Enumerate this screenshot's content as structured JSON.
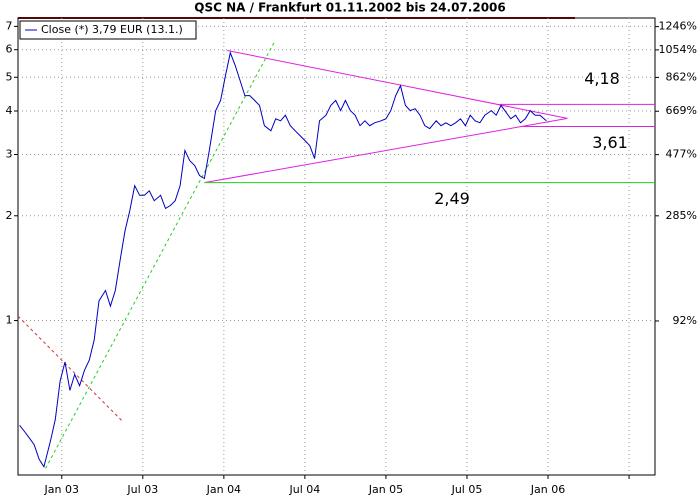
{
  "chart_data": {
    "type": "line",
    "title": "QSC NA / Frankfurt 01.11.2002 bis 24.07.2006",
    "log_y": true,
    "grid": true,
    "legend": "top-left",
    "x": [
      2002.74,
      2002.77,
      2002.8,
      2002.83,
      2002.86,
      2002.89,
      2002.93,
      2002.96,
      2002.99,
      2003.02,
      2003.05,
      2003.08,
      2003.11,
      2003.14,
      2003.17,
      2003.2,
      2003.23,
      2003.27,
      2003.3,
      2003.33,
      2003.36,
      2003.39,
      2003.42,
      2003.45,
      2003.48,
      2003.51,
      2003.54,
      2003.57,
      2003.61,
      2003.64,
      2003.67,
      2003.7,
      2003.73,
      2003.76,
      2003.79,
      2003.82,
      2003.85,
      2003.88,
      2003.91,
      2003.95,
      2003.98,
      2004.01,
      2004.04,
      2004.07,
      2004.1,
      2004.13,
      2004.16,
      2004.19,
      2004.22,
      2004.25,
      2004.29,
      2004.32,
      2004.35,
      2004.38,
      2004.41,
      2004.44,
      2004.47,
      2004.5,
      2004.53,
      2004.56,
      2004.59,
      2004.63,
      2004.66,
      2004.69,
      2004.72,
      2004.75,
      2004.78,
      2004.81,
      2004.84,
      2004.87,
      2004.9,
      2004.93,
      2004.97,
      2005.0,
      2005.03,
      2005.06,
      2005.09,
      2005.12,
      2005.15,
      2005.18,
      2005.21,
      2005.24,
      2005.27,
      2005.31,
      2005.34,
      2005.37,
      2005.4,
      2005.43,
      2005.46,
      2005.49,
      2005.52,
      2005.55,
      2005.58,
      2005.61,
      2005.65,
      2005.68,
      2005.71,
      2005.74,
      2005.77,
      2005.8,
      2005.83,
      2005.86,
      2005.89,
      2005.92,
      2005.95,
      2005.99
    ],
    "series": [
      {
        "name": "Close (*) 3,79 EUR (13.1.)",
        "color": "#0000c0",
        "values": [
          0.5,
          0.48,
          0.46,
          0.44,
          0.4,
          0.38,
          0.45,
          0.52,
          0.67,
          0.76,
          0.63,
          0.7,
          0.65,
          0.72,
          0.77,
          0.88,
          1.14,
          1.22,
          1.1,
          1.22,
          1.49,
          1.81,
          2.07,
          2.44,
          2.29,
          2.29,
          2.36,
          2.21,
          2.29,
          2.1,
          2.14,
          2.21,
          2.44,
          3.08,
          2.88,
          2.79,
          2.61,
          2.56,
          3.08,
          4.01,
          4.29,
          5.06,
          5.88,
          5.41,
          4.89,
          4.43,
          4.43,
          4.29,
          4.15,
          3.63,
          3.51,
          3.8,
          3.75,
          3.89,
          3.63,
          3.51,
          3.4,
          3.29,
          3.18,
          2.92,
          3.75,
          3.89,
          4.15,
          4.29,
          4.01,
          4.29,
          4.01,
          3.89,
          3.63,
          3.75,
          3.63,
          3.7,
          3.75,
          3.8,
          4.01,
          4.43,
          4.73,
          4.15,
          4.01,
          4.06,
          3.89,
          3.63,
          3.56,
          3.75,
          3.63,
          3.7,
          3.63,
          3.7,
          3.8,
          3.63,
          3.89,
          3.75,
          3.7,
          3.89,
          4.01,
          3.89,
          4.15,
          3.97,
          3.8,
          3.89,
          3.7,
          3.8,
          4.01,
          3.89,
          3.89,
          3.75
        ]
      }
    ],
    "xlim": [
      2002.73,
      2006.66
    ],
    "xticks": [
      {
        "value": 2003.0,
        "label": "Jan 03"
      },
      {
        "value": 2003.5,
        "label": "Jul 03"
      },
      {
        "value": 2004.0,
        "label": "Jan 04"
      },
      {
        "value": 2004.5,
        "label": "Jul 04"
      },
      {
        "value": 2005.0,
        "label": "Jan 05"
      },
      {
        "value": 2005.5,
        "label": "Jul 05"
      },
      {
        "value": 2006.0,
        "label": "Jan 06"
      },
      {
        "value": 2006.5,
        "label": null
      }
    ],
    "ylim": [
      0.36,
      7.4
    ],
    "yticks": [
      1,
      2,
      3,
      4,
      5,
      6,
      7
    ],
    "y2lim": [
      -30.7,
      1325
    ],
    "y2ticks": [
      {
        "value": 92,
        "label": "92%"
      },
      {
        "value": 285,
        "label": "285%"
      },
      {
        "value": 477,
        "label": "477%"
      },
      {
        "value": 669,
        "label": "669%"
      },
      {
        "value": 862,
        "label": "862%"
      },
      {
        "value": 1054,
        "label": "1054%"
      },
      {
        "value": 1246,
        "label": "1246%"
      }
    ],
    "trend_lines": [
      {
        "x": [
          2004.02,
          2006.12
        ],
        "y": [
          5.97,
          3.81
        ],
        "color": "#e020e0",
        "dashed": false
      },
      {
        "x": [
          2003.88,
          2006.12
        ],
        "y": [
          2.49,
          3.81
        ],
        "color": "#e020e0",
        "dashed": false
      },
      {
        "x": [
          2002.9,
          2004.31
        ],
        "y": [
          0.376,
          6.29
        ],
        "color": "#20d020",
        "dashed": true
      },
      {
        "x": [
          2002.73,
          2003.37
        ],
        "y": [
          1.03,
          0.516
        ],
        "color": "#e03030",
        "dashed": true
      }
    ],
    "levels": [
      {
        "value": 4.18,
        "label": "4,18",
        "from": 2005.7,
        "color": "#e020e0"
      },
      {
        "value": 3.61,
        "label": "3,61",
        "from": 2005.83,
        "color": "#e020e0"
      },
      {
        "value": 2.49,
        "label": "2,49",
        "from": 2003.88,
        "color": "#20d020"
      }
    ]
  }
}
